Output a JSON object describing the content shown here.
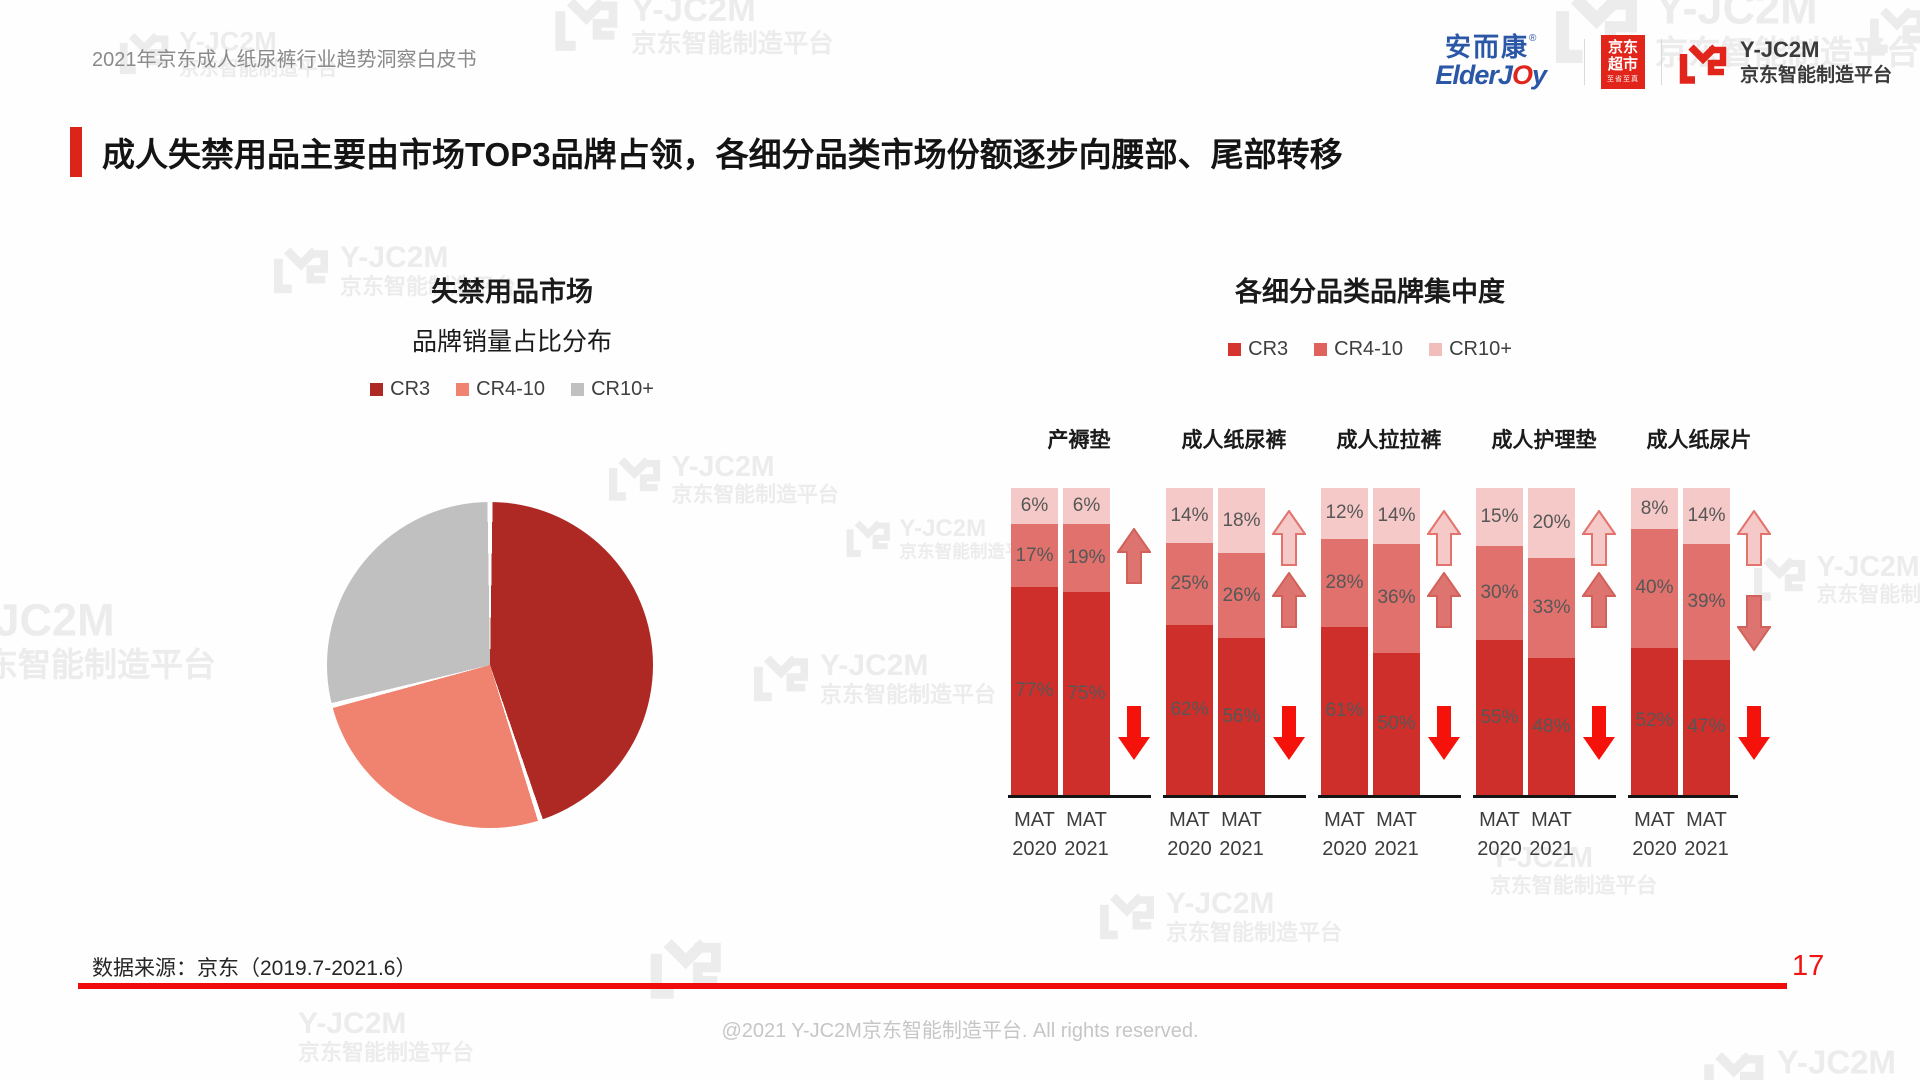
{
  "page": {
    "header_left": "2021年京东成人纸尿裤行业趋势洞察白皮书",
    "title": "成人失禁用品主要由市场TOP3品牌占领，各细分品类市场份额逐步向腰部、尾部转移",
    "source_note": "数据来源：京东（2019.7-2021.6）",
    "page_number": "17",
    "footer": "@2021 Y-JC2M京东智能制造平台. All rights reserved."
  },
  "logos": {
    "elderjoy_cn": "安而康",
    "elderjoy_reg": "®",
    "elderjoy_en_head": "ElderJ",
    "elderjoy_en_o": "O",
    "elderjoy_en_tail": "y",
    "jd_line1": "京东",
    "jd_line2": "超市",
    "jd_sub": "至省至真",
    "yjc2m_name": "Y-JC2M",
    "yjc2m_sub": "京东智能制造平台"
  },
  "watermark": {
    "line1": "Y-JC2M",
    "line2": "京东智能制造平台"
  },
  "colors": {
    "accent_red": "#dc2419",
    "bright_red": "#f00c0a",
    "pie_cr3": "#ae2923",
    "pie_cr410": "#f08370",
    "pie_cr10": "#c1c0c0",
    "bar_cr3": "#ce2f2b",
    "bar_cr410": "#e0716c",
    "bar_cr10": "#f4c9c7",
    "legend_cr3_right": "#d6342e",
    "legend_cr410_right": "#e0625c",
    "legend_cr10_right": "#f2bebb",
    "arrow_red": "#f5120a",
    "arrow_salmon": "#dd7470",
    "arrow_pink_fill": "#f5c9c7",
    "arrow_pink_stroke": "#e2736d"
  },
  "chart_data": [
    {
      "type": "pie",
      "title": "失禁用品市场",
      "subtitle": "品牌销量占比分布",
      "legend": [
        "CR3",
        "CR4-10",
        "CR10+"
      ],
      "values": [
        45,
        26,
        29
      ],
      "colors": [
        "#ae2923",
        "#f08370",
        "#c1c0c0"
      ],
      "legend_position": "top",
      "start_angle_deg": 0,
      "direction": "clockwise"
    },
    {
      "type": "bar",
      "subtype": "stacked-100",
      "title": "各细分品类品牌集中度",
      "legend": [
        {
          "name": "CR3",
          "color": "#d6342e"
        },
        {
          "name": "CR4-10",
          "color": "#e0625c"
        },
        {
          "name": "CR10+",
          "color": "#f2bebb"
        }
      ],
      "stack_order_top_to_bottom": [
        "CR10+",
        "CR4-10",
        "CR3"
      ],
      "categories": [
        "产褥垫",
        "成人纸尿裤",
        "成人拉拉裤",
        "成人护理垫",
        "成人纸尿片"
      ],
      "x_tick_lines": [
        "MAT",
        "MAT"
      ],
      "groups": [
        {
          "category": "产褥垫",
          "bars": [
            {
              "x": [
                "MAT",
                "2020"
              ],
              "CR10+": 6,
              "CR4-10": 17,
              "CR3": 77
            },
            {
              "x": [
                "MAT",
                "2021"
              ],
              "CR10+": 6,
              "CR4-10": 19,
              "CR3": 75
            }
          ],
          "arrows": [
            "salmon-up",
            "red-down"
          ]
        },
        {
          "category": "成人纸尿裤",
          "bars": [
            {
              "x": [
                "MAT",
                "2020"
              ],
              "CR10+": 14,
              "CR4-10": 25,
              "CR3": 62
            },
            {
              "x": [
                "MAT",
                "2021"
              ],
              "CR10+": 18,
              "CR4-10": 26,
              "CR3": 56
            }
          ],
          "arrows": [
            "pink-up",
            "salmon-up",
            "red-down"
          ]
        },
        {
          "category": "成人拉拉裤",
          "bars": [
            {
              "x": [
                "MAT",
                "2020"
              ],
              "CR10+": 12,
              "CR4-10": 28,
              "CR3": 61
            },
            {
              "x": [
                "MAT",
                "2021"
              ],
              "CR10+": 14,
              "CR4-10": 36,
              "CR3": 50
            }
          ],
          "arrows": [
            "pink-up",
            "salmon-up",
            "red-down"
          ]
        },
        {
          "category": "成人护理垫",
          "bars": [
            {
              "x": [
                "MAT",
                "2020"
              ],
              "CR10+": 15,
              "CR4-10": 30,
              "CR3": 55
            },
            {
              "x": [
                "MAT",
                "2021"
              ],
              "CR10+": 20,
              "CR4-10": 33,
              "CR3": 48
            }
          ],
          "arrows": [
            "pink-up",
            "salmon-up",
            "red-down"
          ]
        },
        {
          "category": "成人纸尿片",
          "bars": [
            {
              "x": [
                "MAT",
                "2020"
              ],
              "CR10+": 8,
              "CR4-10": 40,
              "CR3": 52
            },
            {
              "x": [
                "MAT",
                "2021"
              ],
              "CR10+": 14,
              "CR4-10": 39,
              "CR3": 47
            }
          ],
          "arrows": [
            "pink-up",
            "salmon-down",
            "red-down"
          ]
        }
      ]
    }
  ]
}
